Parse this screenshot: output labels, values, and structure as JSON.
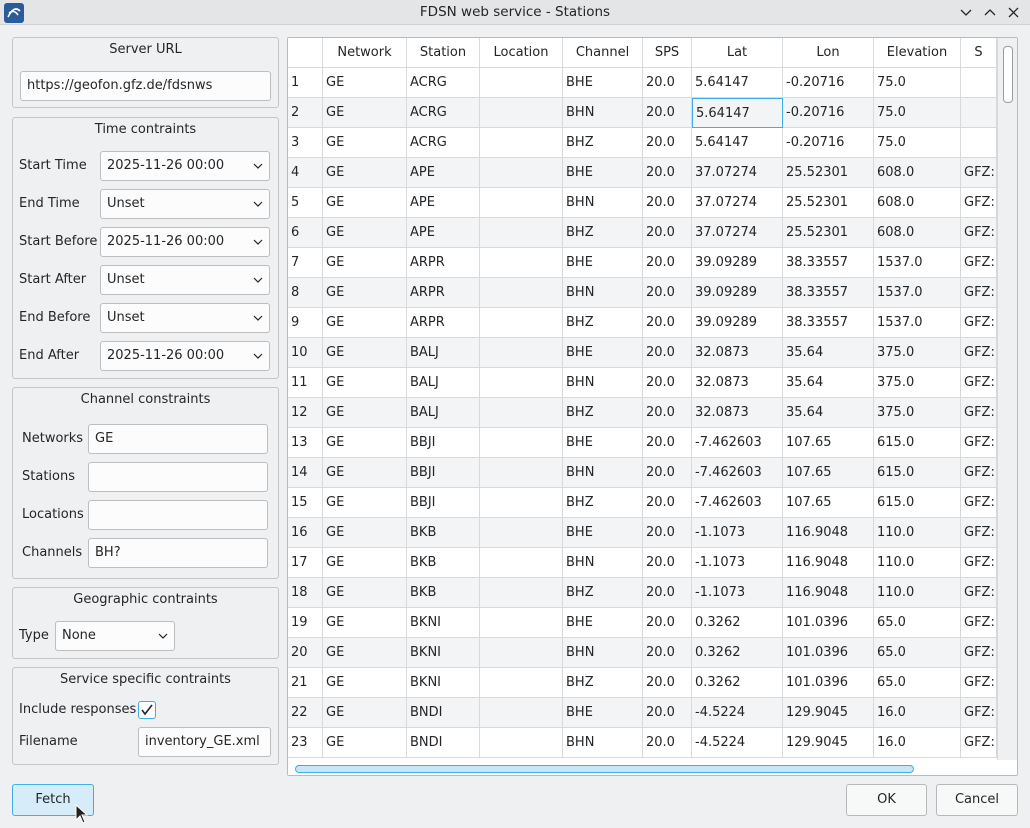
{
  "window": {
    "title": "FDSN web service - Stations"
  },
  "server": {
    "title": "Server URL",
    "url": "https://geofon.gfz.de/fdsnws"
  },
  "time": {
    "title": "Time contraints",
    "fields": [
      {
        "label": "Start Time",
        "value": "2025-11-26 00:00"
      },
      {
        "label": "End Time",
        "value": "Unset"
      },
      {
        "label": "Start Before",
        "value": "2025-11-26 00:00"
      },
      {
        "label": "Start After",
        "value": "Unset"
      },
      {
        "label": "End Before",
        "value": "Unset"
      },
      {
        "label": "End After",
        "value": "2025-11-26 00:00"
      }
    ]
  },
  "channel": {
    "title": "Channel constraints",
    "fields": [
      {
        "label": "Networks",
        "value": "GE"
      },
      {
        "label": "Stations"
      },
      {
        "label": "Locations"
      },
      {
        "label": "Channels",
        "value": "BH?"
      }
    ]
  },
  "geographic": {
    "title": "Geographic contraints",
    "type_label": "Type",
    "type_value": "None"
  },
  "service": {
    "title": "Service specific contraints",
    "include_label": "Include responses",
    "filename_label": "Filename",
    "filename": "inventory_GE.xml"
  },
  "buttons": {
    "fetch": "Fetch",
    "ok": "OK",
    "cancel": "Cancel"
  },
  "table": {
    "columns": [
      "Network",
      "Station",
      "Location",
      "Channel",
      "SPS",
      "Lat",
      "Lon",
      "Elevation",
      "S"
    ],
    "rows": [
      [
        "1",
        "GE",
        "ACRG",
        null,
        "BHE",
        "20.0",
        "5.64147",
        "-0.20716",
        "75.0",
        null
      ],
      [
        "2",
        "GE",
        "ACRG",
        null,
        "BHN",
        "20.0",
        "5.64147",
        "-0.20716",
        "75.0",
        null
      ],
      [
        "3",
        "GE",
        "ACRG",
        null,
        "BHZ",
        "20.0",
        "5.64147",
        "-0.20716",
        "75.0",
        null
      ],
      [
        "4",
        "GE",
        "APE",
        null,
        "BHE",
        "20.0",
        "37.07274",
        "25.52301",
        "608.0",
        "GFZ:"
      ],
      [
        "5",
        "GE",
        "APE",
        null,
        "BHN",
        "20.0",
        "37.07274",
        "25.52301",
        "608.0",
        "GFZ:"
      ],
      [
        "6",
        "GE",
        "APE",
        null,
        "BHZ",
        "20.0",
        "37.07274",
        "25.52301",
        "608.0",
        "GFZ:"
      ],
      [
        "7",
        "GE",
        "ARPR",
        null,
        "BHE",
        "20.0",
        "39.09289",
        "38.33557",
        "1537.0",
        "GFZ:"
      ],
      [
        "8",
        "GE",
        "ARPR",
        null,
        "BHN",
        "20.0",
        "39.09289",
        "38.33557",
        "1537.0",
        "GFZ:"
      ],
      [
        "9",
        "GE",
        "ARPR",
        null,
        "BHZ",
        "20.0",
        "39.09289",
        "38.33557",
        "1537.0",
        "GFZ:"
      ],
      [
        "10",
        "GE",
        "BALJ",
        null,
        "BHE",
        "20.0",
        "32.0873",
        "35.64",
        "375.0",
        "GFZ:"
      ],
      [
        "11",
        "GE",
        "BALJ",
        null,
        "BHN",
        "20.0",
        "32.0873",
        "35.64",
        "375.0",
        "GFZ:"
      ],
      [
        "12",
        "GE",
        "BALJ",
        null,
        "BHZ",
        "20.0",
        "32.0873",
        "35.64",
        "375.0",
        "GFZ:"
      ],
      [
        "13",
        "GE",
        "BBJI",
        null,
        "BHE",
        "20.0",
        "-7.462603",
        "107.65",
        "615.0",
        "GFZ:"
      ],
      [
        "14",
        "GE",
        "BBJI",
        null,
        "BHN",
        "20.0",
        "-7.462603",
        "107.65",
        "615.0",
        "GFZ:"
      ],
      [
        "15",
        "GE",
        "BBJI",
        null,
        "BHZ",
        "20.0",
        "-7.462603",
        "107.65",
        "615.0",
        "GFZ:"
      ],
      [
        "16",
        "GE",
        "BKB",
        null,
        "BHE",
        "20.0",
        "-1.1073",
        "116.9048",
        "110.0",
        "GFZ:"
      ],
      [
        "17",
        "GE",
        "BKB",
        null,
        "BHN",
        "20.0",
        "-1.1073",
        "116.9048",
        "110.0",
        "GFZ:"
      ],
      [
        "18",
        "GE",
        "BKB",
        null,
        "BHZ",
        "20.0",
        "-1.1073",
        "116.9048",
        "110.0",
        "GFZ:"
      ],
      [
        "19",
        "GE",
        "BKNI",
        null,
        "BHE",
        "20.0",
        "0.3262",
        "101.0396",
        "65.0",
        "GFZ:"
      ],
      [
        "20",
        "GE",
        "BKNI",
        null,
        "BHN",
        "20.0",
        "0.3262",
        "101.0396",
        "65.0",
        "GFZ:"
      ],
      [
        "21",
        "GE",
        "BKNI",
        null,
        "BHZ",
        "20.0",
        "0.3262",
        "101.0396",
        "65.0",
        "GFZ:"
      ],
      [
        "22",
        "GE",
        "BNDI",
        null,
        "BHE",
        "20.0",
        "-4.5224",
        "129.9045",
        "16.0",
        "GFZ:"
      ],
      [
        "23",
        "GE",
        "BNDI",
        null,
        "BHN",
        "20.0",
        "-4.5224",
        "129.9045",
        "16.0",
        "GFZ:"
      ]
    ]
  }
}
